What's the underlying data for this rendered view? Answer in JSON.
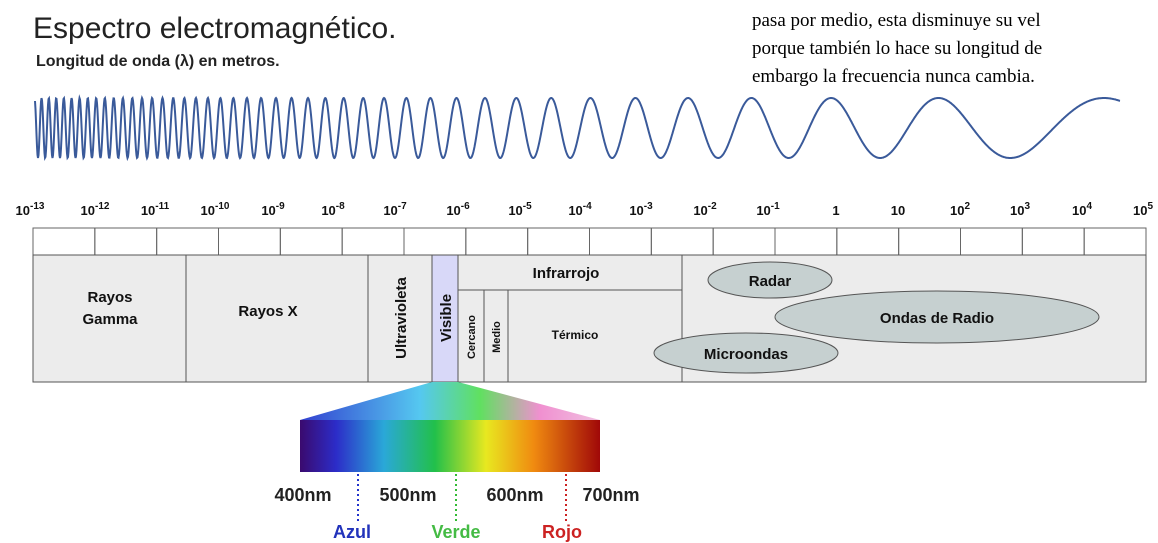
{
  "header": {
    "title": "Espectro electromagnético.",
    "subtitle": "Longitud de onda (λ) en metros."
  },
  "note": {
    "lines": [
      "pasa por medio, esta disminuye su vel",
      "porque también lo hace su longitud de",
      "embargo la frecuencia nunca cambia."
    ]
  },
  "scale": [
    {
      "base": "10",
      "exponent": "-13"
    },
    {
      "base": "10",
      "exponent": "-12"
    },
    {
      "base": "10",
      "exponent": "-11"
    },
    {
      "base": "10",
      "exponent": "-10"
    },
    {
      "base": "10",
      "exponent": "-9"
    },
    {
      "base": "10",
      "exponent": "-8"
    },
    {
      "base": "10",
      "exponent": "-7"
    },
    {
      "base": "10",
      "exponent": "-6"
    },
    {
      "base": "10",
      "exponent": "-5"
    },
    {
      "base": "10",
      "exponent": "-4"
    },
    {
      "base": "10",
      "exponent": "-3"
    },
    {
      "base": "10",
      "exponent": "-2"
    },
    {
      "base": "10",
      "exponent": "-1"
    },
    {
      "base": "1"
    },
    {
      "base": "10"
    },
    {
      "base": "10",
      "exponent": "2"
    },
    {
      "base": "10",
      "exponent": "3"
    },
    {
      "base": "10",
      "exponent": "4"
    },
    {
      "base": "10",
      "exponent": "5"
    }
  ],
  "bands": {
    "gamma": [
      "Rayos",
      "Gamma"
    ],
    "xray": "Rayos X",
    "ultraviolet": "Ultravioleta",
    "visible": "Visible",
    "infrared": "Infrarrojo",
    "near": "Cercano",
    "mid": "Medio",
    "thermal": "Térmico",
    "radar": "Radar",
    "radio": "Ondas de Radio",
    "microwave": "Microondas"
  },
  "visible_spectrum": {
    "wavelengths": [
      "400nm",
      "500nm",
      "600nm",
      "700nm"
    ],
    "colors": [
      "Azul",
      "Verde",
      "Rojo"
    ]
  }
}
